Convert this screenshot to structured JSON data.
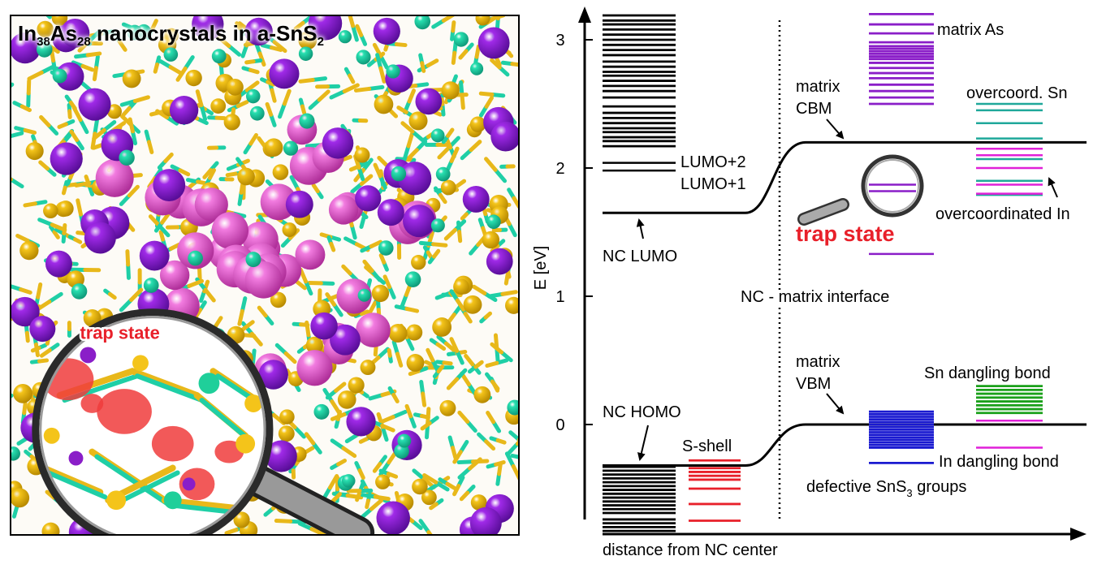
{
  "left_panel": {
    "title_parts": {
      "el1": "In",
      "sub1": "38",
      "el2": "As",
      "sub2": "28",
      "mid": " nanocrystals in a-SnS",
      "sub3": "2"
    },
    "zoom_label": "trap state"
  },
  "diagram": {
    "y_axis_label": "E [eV]",
    "x_axis_label": "distance from NC center",
    "y_ticks": [
      "0",
      "1",
      "2",
      "3"
    ],
    "interface_label": "NC - matrix interface",
    "labels": {
      "lumo2": "LUMO+2",
      "lumo1": "LUMO+1",
      "nc_lumo": "NC LUMO",
      "matrix_cbm_1": "matrix",
      "matrix_cbm_2": "CBM",
      "matrix_as": "matrix As",
      "overcoord_sn": "overcoord. Sn",
      "overcoord_in": "overcoordinated In",
      "trap_state": "trap state",
      "nc_homo": "NC HOMO",
      "s_shell": "S-shell",
      "matrix_vbm_1": "matrix",
      "matrix_vbm_2": "VBM",
      "sn_dangling": "Sn dangling bond",
      "in_dangling": "In dangling bond",
      "defective_a": "defective SnS",
      "defective_sub": "3",
      "defective_b": " groups"
    },
    "colors": {
      "black": "#000000",
      "red": "#e8202a",
      "purple": "#8a1ec8",
      "teal": "#1fa89a",
      "magenta": "#e020d8",
      "blue": "#1a1ad0",
      "green": "#1aa01a"
    },
    "levels": {
      "nc_unocc": [
        3.19,
        3.15,
        3.12,
        3.08,
        3.04,
        3.0,
        2.96,
        2.92,
        2.88,
        2.83,
        2.79,
        2.75,
        2.72,
        2.68,
        2.64,
        2.6,
        2.55,
        2.48,
        2.43,
        2.39,
        2.35,
        2.31,
        2.28,
        2.24,
        2.21,
        2.17,
        2.04,
        1.98
      ],
      "nc_occ": [
        -0.33,
        -0.36,
        -0.39,
        -0.42,
        -0.45,
        -0.48,
        -0.51,
        -0.54,
        -0.57,
        -0.6,
        -0.63,
        -0.66,
        -0.69,
        -0.74,
        -0.77,
        -0.8,
        -0.83
      ],
      "s_shell": [
        -0.28,
        -0.34,
        -0.37,
        -0.4,
        -0.43,
        -0.5,
        -0.62,
        -0.75
      ],
      "matrix_as": [
        3.2,
        3.12,
        3.05,
        2.98,
        2.95,
        2.93,
        2.91,
        2.89,
        2.87,
        2.85,
        2.82,
        2.78,
        2.74,
        2.7,
        2.65,
        2.6,
        2.55,
        2.5
      ],
      "trap": [
        1.87,
        1.82,
        1.33
      ],
      "overcoord_sn": [
        2.5,
        2.45,
        2.35,
        2.23,
        2.07,
        1.9,
        1.79
      ],
      "overcoord_in": [
        2.15,
        2.1,
        2.0,
        1.87,
        1.8
      ],
      "defect_sn3": [
        0.1,
        0.08,
        0.06,
        0.04,
        0.02,
        0.0,
        -0.02,
        -0.04,
        -0.06,
        -0.08,
        -0.1,
        -0.12,
        -0.14,
        -0.16,
        -0.18,
        -0.3
      ],
      "sn_dangling": [
        0.3,
        0.27,
        0.24,
        0.21,
        0.18,
        0.15,
        0.12,
        0.09
      ],
      "sn_dangling_magenta": [
        0.03,
        -0.18
      ],
      "cbm_nc": 1.65,
      "cbm_matrix": 2.2,
      "vbm_nc": -0.32,
      "vbm_matrix": 0.0
    }
  }
}
